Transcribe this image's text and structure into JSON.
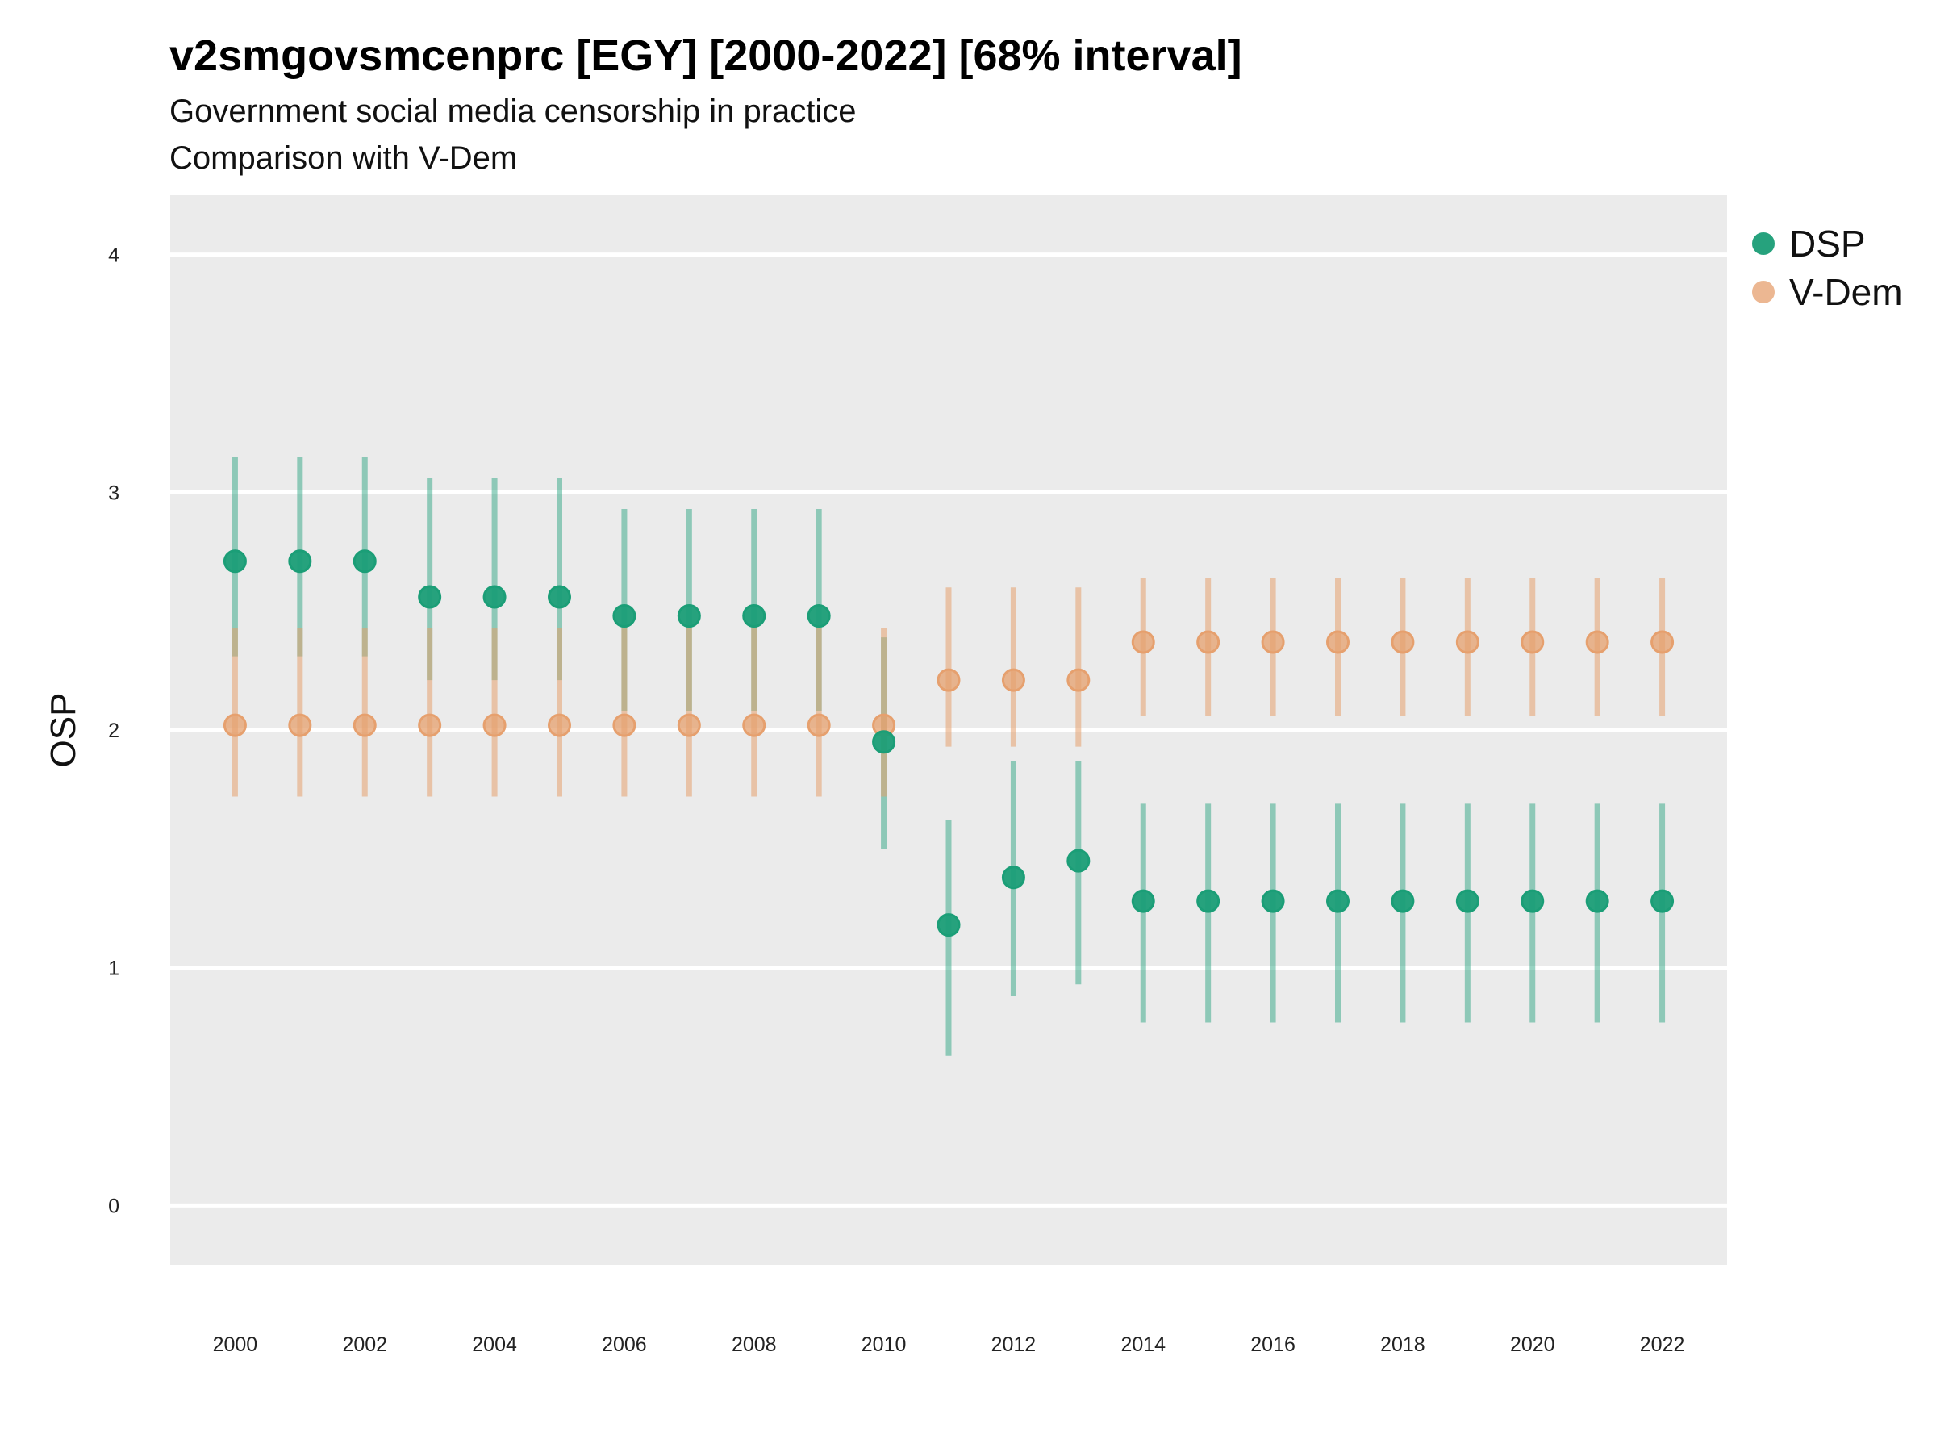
{
  "title": "v2smgovsmcenprc [EGY] [2000-2022] [68% interval]",
  "subtitle": "Government social media censorship in practice",
  "subtitle2": "Comparison with V-Dem",
  "colors": {
    "panel": "#EBEBEB",
    "grid": "#FFFFFF",
    "dsp": "#1B9E77",
    "vdem": "#E6A06E"
  },
  "chart_data": {
    "type": "scatter",
    "ylabel": "OSP",
    "xlabel": "",
    "ylim": [
      -0.25,
      4.25
    ],
    "yticks": [
      0,
      1,
      2,
      3,
      4
    ],
    "xlim": [
      1999,
      2023
    ],
    "xticks": [
      2000,
      2002,
      2004,
      2006,
      2008,
      2010,
      2012,
      2014,
      2016,
      2018,
      2020,
      2022
    ],
    "grid": true,
    "legend_position": "right",
    "interval": "68%",
    "series": [
      {
        "name": "DSP",
        "color": "#1B9E77",
        "x": [
          2000,
          2001,
          2002,
          2003,
          2004,
          2005,
          2006,
          2007,
          2008,
          2009,
          2010,
          2011,
          2012,
          2013,
          2014,
          2015,
          2016,
          2017,
          2018,
          2019,
          2020,
          2021,
          2022
        ],
        "y": [
          2.71,
          2.71,
          2.71,
          2.56,
          2.56,
          2.56,
          2.48,
          2.48,
          2.48,
          2.48,
          1.95,
          1.18,
          1.38,
          1.45,
          1.28,
          1.28,
          1.28,
          1.28,
          1.28,
          1.28,
          1.28,
          1.28,
          1.28
        ],
        "lower": [
          2.31,
          2.31,
          2.31,
          2.21,
          2.21,
          2.21,
          2.08,
          2.08,
          2.08,
          2.08,
          1.5,
          0.63,
          0.88,
          0.93,
          0.77,
          0.77,
          0.77,
          0.77,
          0.77,
          0.77,
          0.77,
          0.77,
          0.77
        ],
        "upper": [
          3.15,
          3.15,
          3.15,
          3.06,
          3.06,
          3.06,
          2.93,
          2.93,
          2.93,
          2.93,
          2.39,
          1.62,
          1.87,
          1.87,
          1.69,
          1.69,
          1.69,
          1.69,
          1.69,
          1.69,
          1.69,
          1.69,
          1.69
        ]
      },
      {
        "name": "V-Dem",
        "color": "#E6A06E",
        "x": [
          2000,
          2001,
          2002,
          2003,
          2004,
          2005,
          2006,
          2007,
          2008,
          2009,
          2010,
          2011,
          2012,
          2013,
          2014,
          2015,
          2016,
          2017,
          2018,
          2019,
          2020,
          2021,
          2022
        ],
        "y": [
          2.02,
          2.02,
          2.02,
          2.02,
          2.02,
          2.02,
          2.02,
          2.02,
          2.02,
          2.02,
          2.02,
          2.21,
          2.21,
          2.21,
          2.37,
          2.37,
          2.37,
          2.37,
          2.37,
          2.37,
          2.37,
          2.37,
          2.37
        ],
        "lower": [
          1.72,
          1.72,
          1.72,
          1.72,
          1.72,
          1.72,
          1.72,
          1.72,
          1.72,
          1.72,
          1.72,
          1.93,
          1.93,
          1.93,
          2.06,
          2.06,
          2.06,
          2.06,
          2.06,
          2.06,
          2.06,
          2.06,
          2.06
        ],
        "upper": [
          2.43,
          2.43,
          2.43,
          2.43,
          2.43,
          2.43,
          2.43,
          2.43,
          2.43,
          2.43,
          2.43,
          2.6,
          2.6,
          2.6,
          2.64,
          2.64,
          2.64,
          2.64,
          2.64,
          2.64,
          2.64,
          2.64,
          2.64
        ]
      }
    ]
  }
}
